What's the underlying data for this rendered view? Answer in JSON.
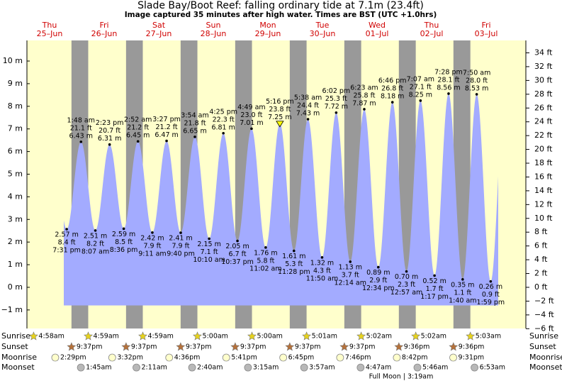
{
  "chart_data": {
    "type": "tide",
    "title": "Slade Bay/Boot Reef: falling  ordinary tide at 7.1m (23.4ft)",
    "subtitle": "Image captured 35 minutes after high water. Times are BST (UTC +1.0hrs)",
    "days": [
      {
        "weekday": "Thu",
        "date": "25–Jun"
      },
      {
        "weekday": "Fri",
        "date": "26–Jun"
      },
      {
        "weekday": "Sat",
        "date": "27–Jun"
      },
      {
        "weekday": "Sun",
        "date": "28–Jun"
      },
      {
        "weekday": "Mon",
        "date": "29–Jun"
      },
      {
        "weekday": "Tue",
        "date": "30–Jun"
      },
      {
        "weekday": "Wed",
        "date": "01–Jul"
      },
      {
        "weekday": "Thu",
        "date": "02–Jul"
      },
      {
        "weekday": "Fri",
        "date": "03–Jul"
      }
    ],
    "extremes": {
      "times": [
        "7:31 pm",
        "1:48 am",
        "8:07 am",
        "2:23 pm",
        "8:36 pm",
        "2:52 am",
        "9:11 am",
        "3:27 pm",
        "9:40 pm",
        "3:54 am",
        "10:10 am",
        "4:25 pm",
        "10:37 pm",
        "4:49 am",
        "11:02 am",
        "5:16 pm",
        "11:28 pm",
        "5:38 am",
        "11:50 am",
        "6:02 pm",
        "12:14 am",
        "6:23 am",
        "12:34 pm",
        "6:46 pm",
        "12:57 am",
        "7:07 am",
        "1:17 pm",
        "7:28 pm",
        "1:40 am",
        "7:50 am",
        "1:59 pm"
      ],
      "values": [
        2.57,
        6.43,
        2.51,
        6.31,
        2.59,
        6.45,
        2.42,
        6.47,
        2.41,
        6.65,
        2.15,
        6.81,
        2.05,
        7.01,
        1.76,
        7.25,
        1.61,
        7.43,
        1.32,
        7.72,
        1.13,
        7.87,
        0.89,
        8.18,
        0.7,
        8.25,
        0.52,
        8.56,
        0.35,
        8.53,
        0.26
      ],
      "value_labels": [
        "2.57 m",
        "6.43 m",
        "2.51 m",
        "6.31 m",
        "2.59 m",
        "6.45 m",
        "2.42 m",
        "6.47 m",
        "2.41 m",
        "6.65 m",
        "2.15 m",
        "6.81 m",
        "2.05 m",
        "7.01 m",
        "1.76 m",
        "7.25 m",
        "1.61 m",
        "7.43 m",
        "1.32 m",
        "7.72 m",
        "1.13 m",
        "7.87 m",
        "0.89 m",
        "8.18 m",
        "0.70 m",
        "8.25 m",
        "0.52 m",
        "8.56 m",
        "0.35 m",
        "8.53 m",
        "0.26 m"
      ],
      "ft_labels": [
        "8.4 ft",
        "21.1 ft",
        "8.2 ft",
        "20.7 ft",
        "8.5 ft",
        "21.2 ft",
        "7.9 ft",
        "21.2 ft",
        "7.9 ft",
        "21.8 ft",
        "7.1 ft",
        "22.3 ft",
        "6.7 ft",
        "23.0 ft",
        "5.8 ft",
        "23.8 ft",
        "5.3 ft",
        "24.4 ft",
        "4.3 ft",
        "25.3 ft",
        "3.7 ft",
        "25.8 ft",
        "2.9 ft",
        "26.8 ft",
        "2.3 ft",
        "27.1 ft",
        "1.7 ft",
        "28.1 ft",
        "1.1 ft",
        "28.0 ft",
        "0.9 ft"
      ],
      "color": "#a3abff"
    },
    "day_color": "#ffffcc",
    "night_color": "#999999",
    "ylim": [
      -1.82,
      10.91
    ],
    "yticks": [
      {
        "value": -1,
        "label": "−1 m"
      },
      {
        "value": 0,
        "label": "0 m"
      },
      {
        "value": 1,
        "label": "1 m"
      },
      {
        "value": 2,
        "label": "2 m"
      },
      {
        "value": 3,
        "label": "3 m"
      },
      {
        "value": 4,
        "label": "4 m"
      },
      {
        "value": 5,
        "label": "5 m"
      },
      {
        "value": 6,
        "label": "6 m"
      },
      {
        "value": 7,
        "label": "7 m"
      },
      {
        "value": 8,
        "label": "8 m"
      },
      {
        "value": 9,
        "label": "9 m"
      },
      {
        "value": 10,
        "label": "10 m"
      }
    ],
    "y2lim": [
      -5.97,
      35.8
    ],
    "y2ticks": [
      {
        "value": -6,
        "label": "−6 ft"
      },
      {
        "value": -4,
        "label": "−4 ft"
      },
      {
        "value": -2,
        "label": "−2 ft"
      },
      {
        "value": 0,
        "label": "0 ft"
      },
      {
        "value": 2,
        "label": "2 ft"
      },
      {
        "value": 4,
        "label": "4 ft"
      },
      {
        "value": 6,
        "label": "6 ft"
      },
      {
        "value": 8,
        "label": "8 ft"
      },
      {
        "value": 10,
        "label": "10 ft"
      },
      {
        "value": 12,
        "label": "12 ft"
      },
      {
        "value": 14,
        "label": "14 ft"
      },
      {
        "value": 16,
        "label": "16 ft"
      },
      {
        "value": 18,
        "label": "18 ft"
      },
      {
        "value": 20,
        "label": "20 ft"
      },
      {
        "value": 22,
        "label": "22 ft"
      },
      {
        "value": 24,
        "label": "24 ft"
      },
      {
        "value": 26,
        "label": "26 ft"
      },
      {
        "value": 28,
        "label": "28 ft"
      },
      {
        "value": 30,
        "label": "30 ft"
      },
      {
        "value": 32,
        "label": "32 ft"
      },
      {
        "value": 34,
        "label": "34 ft"
      }
    ],
    "rows": [
      {
        "name": "Sunrise",
        "times": [
          "4:58am",
          "4:59am",
          "4:59am",
          "5:00am",
          "5:00am",
          "5:01am",
          "5:02am",
          "5:02am",
          "5:03am"
        ]
      },
      {
        "name": "Sunset",
        "times": [
          "9:37pm",
          "9:37pm",
          "9:37pm",
          "9:37pm",
          "9:37pm",
          "9:37pm",
          "9:36pm",
          "9:36pm",
          null
        ]
      },
      {
        "name": "Moonrise",
        "times": [
          "2:29pm",
          "3:32pm",
          "4:36pm",
          "5:41pm",
          "6:45pm",
          "7:46pm",
          "8:42pm",
          "9:31pm",
          null
        ]
      },
      {
        "name": "Moonset",
        "times": [
          null,
          "1:45am",
          "2:11am",
          "2:40am",
          "3:15am",
          "3:57am",
          "4:47am",
          "5:46am",
          "6:53am"
        ]
      }
    ],
    "full_moon": "Full Moon | 3:19am"
  }
}
